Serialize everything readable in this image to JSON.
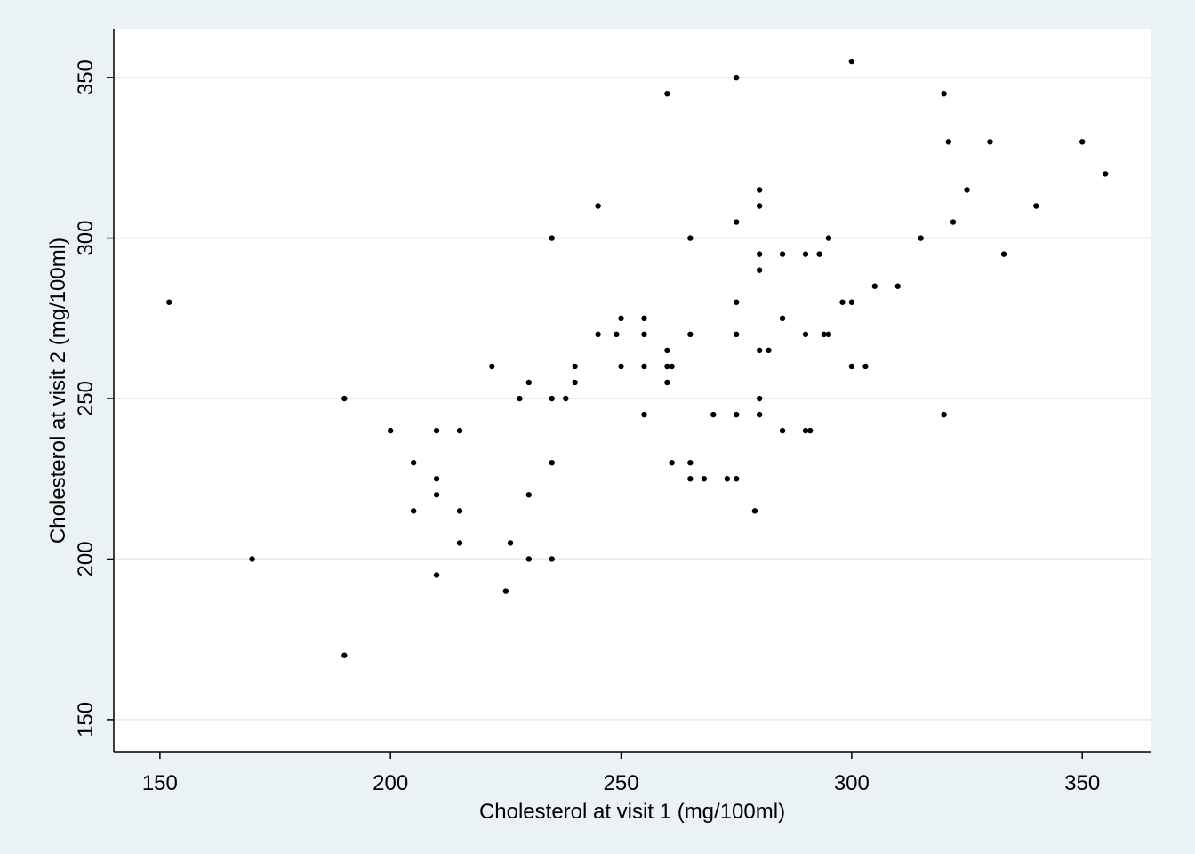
{
  "chart_data": {
    "type": "scatter",
    "x_label": "Cholesterol at visit 1 (mg/100ml)",
    "y_label": "Cholesterol at visit 2 (mg/100ml)",
    "color": "#000000",
    "grid": true,
    "xlim": [
      140,
      365
    ],
    "ylim": [
      140,
      365
    ],
    "xticks": [
      150,
      200,
      250,
      300,
      350
    ],
    "yticks": [
      150,
      200,
      250,
      300,
      350
    ],
    "x": [
      152,
      170,
      190,
      190,
      200,
      205,
      205,
      210,
      210,
      210,
      210,
      215,
      215,
      215,
      222,
      225,
      226,
      228,
      230,
      230,
      230,
      235,
      235,
      235,
      235,
      238,
      240,
      240,
      245,
      245,
      249,
      250,
      250,
      255,
      255,
      255,
      255,
      260,
      260,
      260,
      260,
      261,
      261,
      265,
      265,
      265,
      265,
      268,
      270,
      273,
      275,
      275,
      275,
      275,
      275,
      275,
      279,
      280,
      280,
      280,
      280,
      280,
      280,
      280,
      282,
      285,
      285,
      285,
      290,
      290,
      290,
      291,
      293,
      294,
      295,
      295,
      298,
      300,
      300,
      300,
      303,
      305,
      310,
      315,
      320,
      320,
      321,
      322,
      325,
      330,
      333,
      340,
      350,
      355
    ],
    "y": [
      280,
      200,
      250,
      170,
      240,
      230,
      215,
      240,
      225,
      220,
      195,
      240,
      215,
      205,
      260,
      190,
      205,
      250,
      255,
      220,
      200,
      300,
      250,
      230,
      200,
      250,
      260,
      255,
      310,
      270,
      270,
      275,
      260,
      275,
      270,
      260,
      245,
      345,
      265,
      260,
      255,
      260,
      230,
      300,
      270,
      230,
      225,
      225,
      245,
      225,
      350,
      305,
      280,
      270,
      245,
      225,
      215,
      315,
      310,
      295,
      290,
      265,
      250,
      245,
      265,
      295,
      275,
      240,
      295,
      270,
      240,
      240,
      295,
      270,
      300,
      270,
      280,
      355,
      280,
      260,
      260,
      285,
      285,
      300,
      345,
      245,
      330,
      305,
      315,
      330,
      295,
      310,
      330,
      320
    ]
  }
}
